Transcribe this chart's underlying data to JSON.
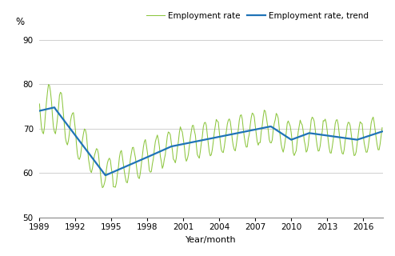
{
  "ylabel": "%",
  "xlabel": "Year/month",
  "ylim": [
    50,
    92
  ],
  "yticks": [
    50,
    60,
    70,
    80,
    90
  ],
  "start_year": 1989,
  "start_month": 1,
  "end_year": 2017,
  "end_month": 8,
  "xtick_years": [
    1989,
    1992,
    1995,
    1998,
    2001,
    2004,
    2007,
    2010,
    2013,
    2016
  ],
  "employment_color": "#8DC63F",
  "trend_color": "#1F73B7",
  "legend_employment": "Employment rate",
  "legend_trend": "Employment rate, trend",
  "background_color": "#ffffff",
  "grid_color": "#c8c8c8",
  "employment_lw": 0.75,
  "trend_lw": 1.6
}
